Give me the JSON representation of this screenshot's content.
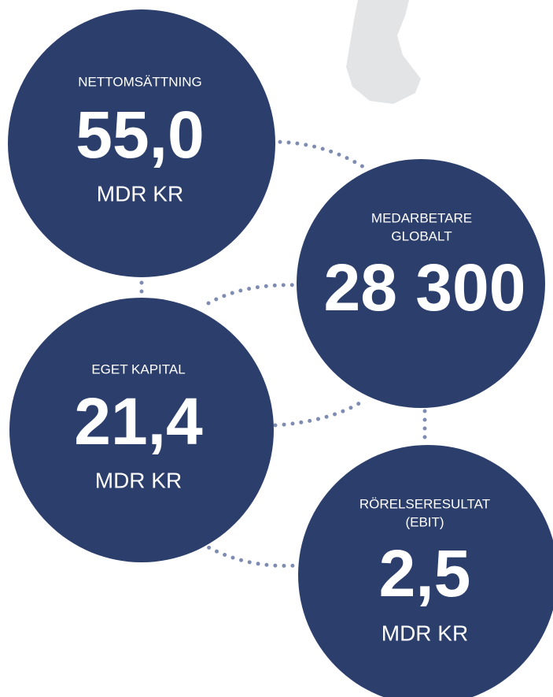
{
  "circles": [
    {
      "label": [
        "NETTOMSÄTTNING"
      ],
      "value": "55,0",
      "unit": "MDR KR"
    },
    {
      "label": [
        "MEDARBETARE",
        "GLOBALT"
      ],
      "value": "28 300"
    },
    {
      "label": [
        "EGET KAPITAL"
      ],
      "value": "21,4",
      "unit": "MDR KR"
    },
    {
      "label": [
        "RÖRELSERESULTAT",
        "(EBIT)"
      ],
      "value": "2,5",
      "unit": "MDR KR"
    }
  ]
}
